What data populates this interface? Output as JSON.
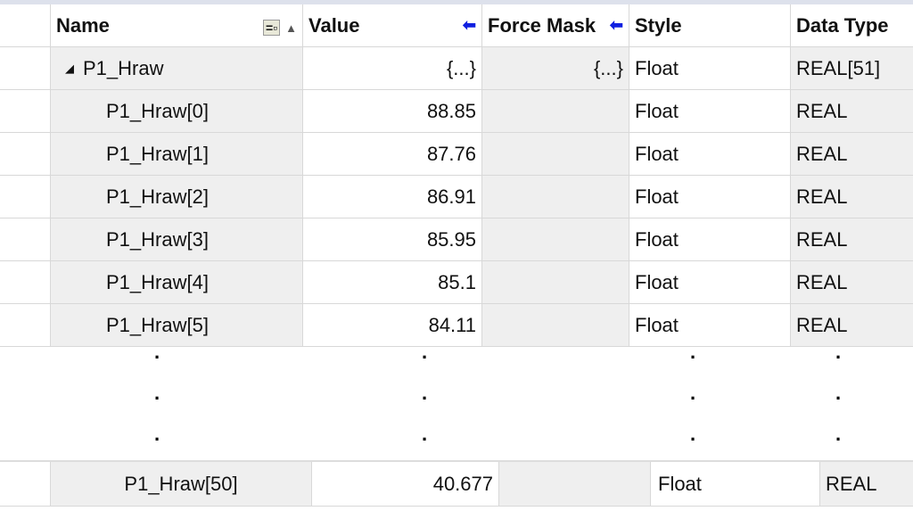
{
  "columns": {
    "name": "Name",
    "value": "Value",
    "force_mask": "Force Mask",
    "style": "Style",
    "data_type": "Data Type"
  },
  "header_icons": {
    "column_chooser": "column-chooser-icon",
    "sort": "sort-ascending-icon",
    "value_arrow": "left-arrow-icon",
    "force_arrow": "left-arrow-icon"
  },
  "parent": {
    "name": "P1_Hraw",
    "value": "{...}",
    "force_mask": "{...}",
    "style": "Float",
    "data_type": "REAL[51]"
  },
  "rows": [
    {
      "name": "P1_Hraw[0]",
      "value": "88.85",
      "style": "Float",
      "data_type": "REAL"
    },
    {
      "name": "P1_Hraw[1]",
      "value": "87.76",
      "style": "Float",
      "data_type": "REAL"
    },
    {
      "name": "P1_Hraw[2]",
      "value": "86.91",
      "style": "Float",
      "data_type": "REAL"
    },
    {
      "name": "P1_Hraw[3]",
      "value": "85.95",
      "style": "Float",
      "data_type": "REAL"
    },
    {
      "name": "P1_Hraw[4]",
      "value": "85.1",
      "style": "Float",
      "data_type": "REAL"
    },
    {
      "name": "P1_Hraw[5]",
      "value": "84.11",
      "style": "Float",
      "data_type": "REAL"
    }
  ],
  "ellipsis": ".",
  "last_row": {
    "name": "P1_Hraw[50]",
    "value": "40.677",
    "style": "Float",
    "data_type": "REAL"
  }
}
